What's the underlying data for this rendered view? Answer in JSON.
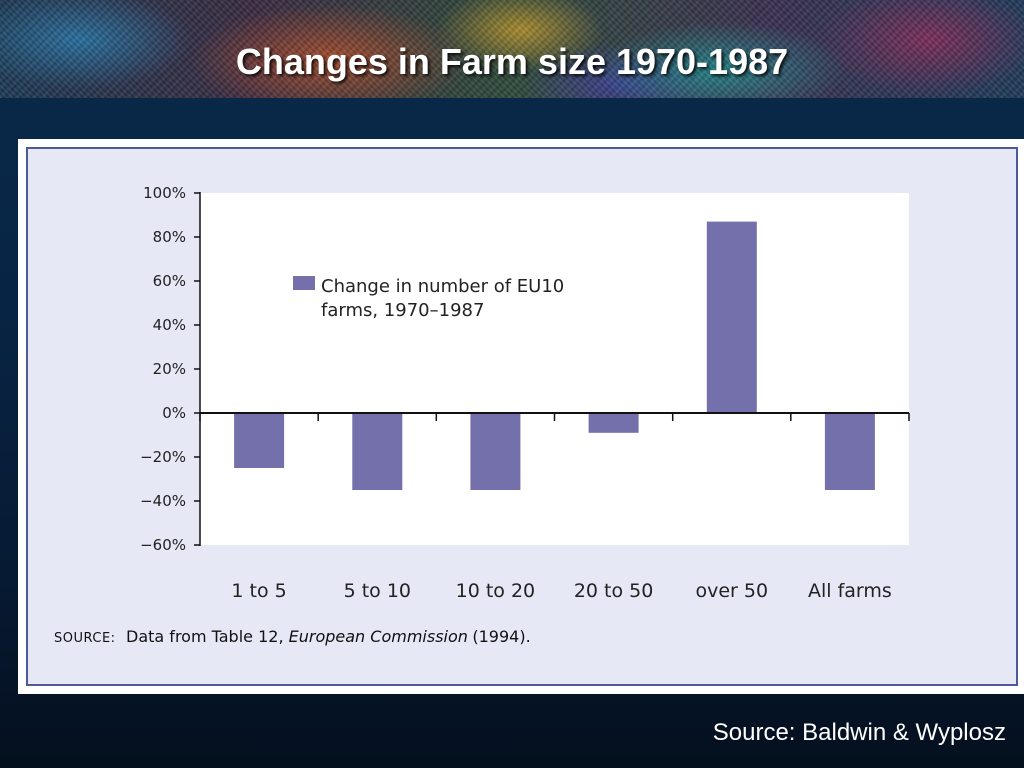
{
  "slide": {
    "title": "Changes in Farm size 1970-1987",
    "source": "Source: Baldwin & Wyplosz"
  },
  "colors": {
    "bar": "#7370ab",
    "plot_background": "#ffffff",
    "panel_background": "#e7e8f5",
    "panel_border": "#4a5a9a"
  },
  "chart_data": {
    "type": "bar",
    "categories": [
      "1 to 5",
      "5 to 10",
      "10 to 20",
      "20 to 50",
      "over 50",
      "All farms"
    ],
    "series": [
      {
        "name": "Change in number of EU10 farms, 1970–1987",
        "values": [
          -25,
          -35,
          -35,
          -9,
          87,
          -35
        ]
      }
    ],
    "ylim": [
      -60,
      100
    ],
    "yticks": [
      100,
      80,
      60,
      40,
      20,
      0,
      -20,
      -40,
      -60
    ],
    "ytick_labels": [
      "100%",
      "80%",
      "60%",
      "40%",
      "20%",
      "0%",
      "−20%",
      "−40%",
      "−60%"
    ],
    "legend": {
      "lines": [
        "Change in number of EU10",
        "farms, 1970–1987"
      ],
      "placement": "top-left"
    },
    "source_note": {
      "label": "SOURCE:",
      "text": "Data from Table 12, ",
      "italic": "European Commission",
      "suffix": " (1994)."
    },
    "grid": false
  }
}
